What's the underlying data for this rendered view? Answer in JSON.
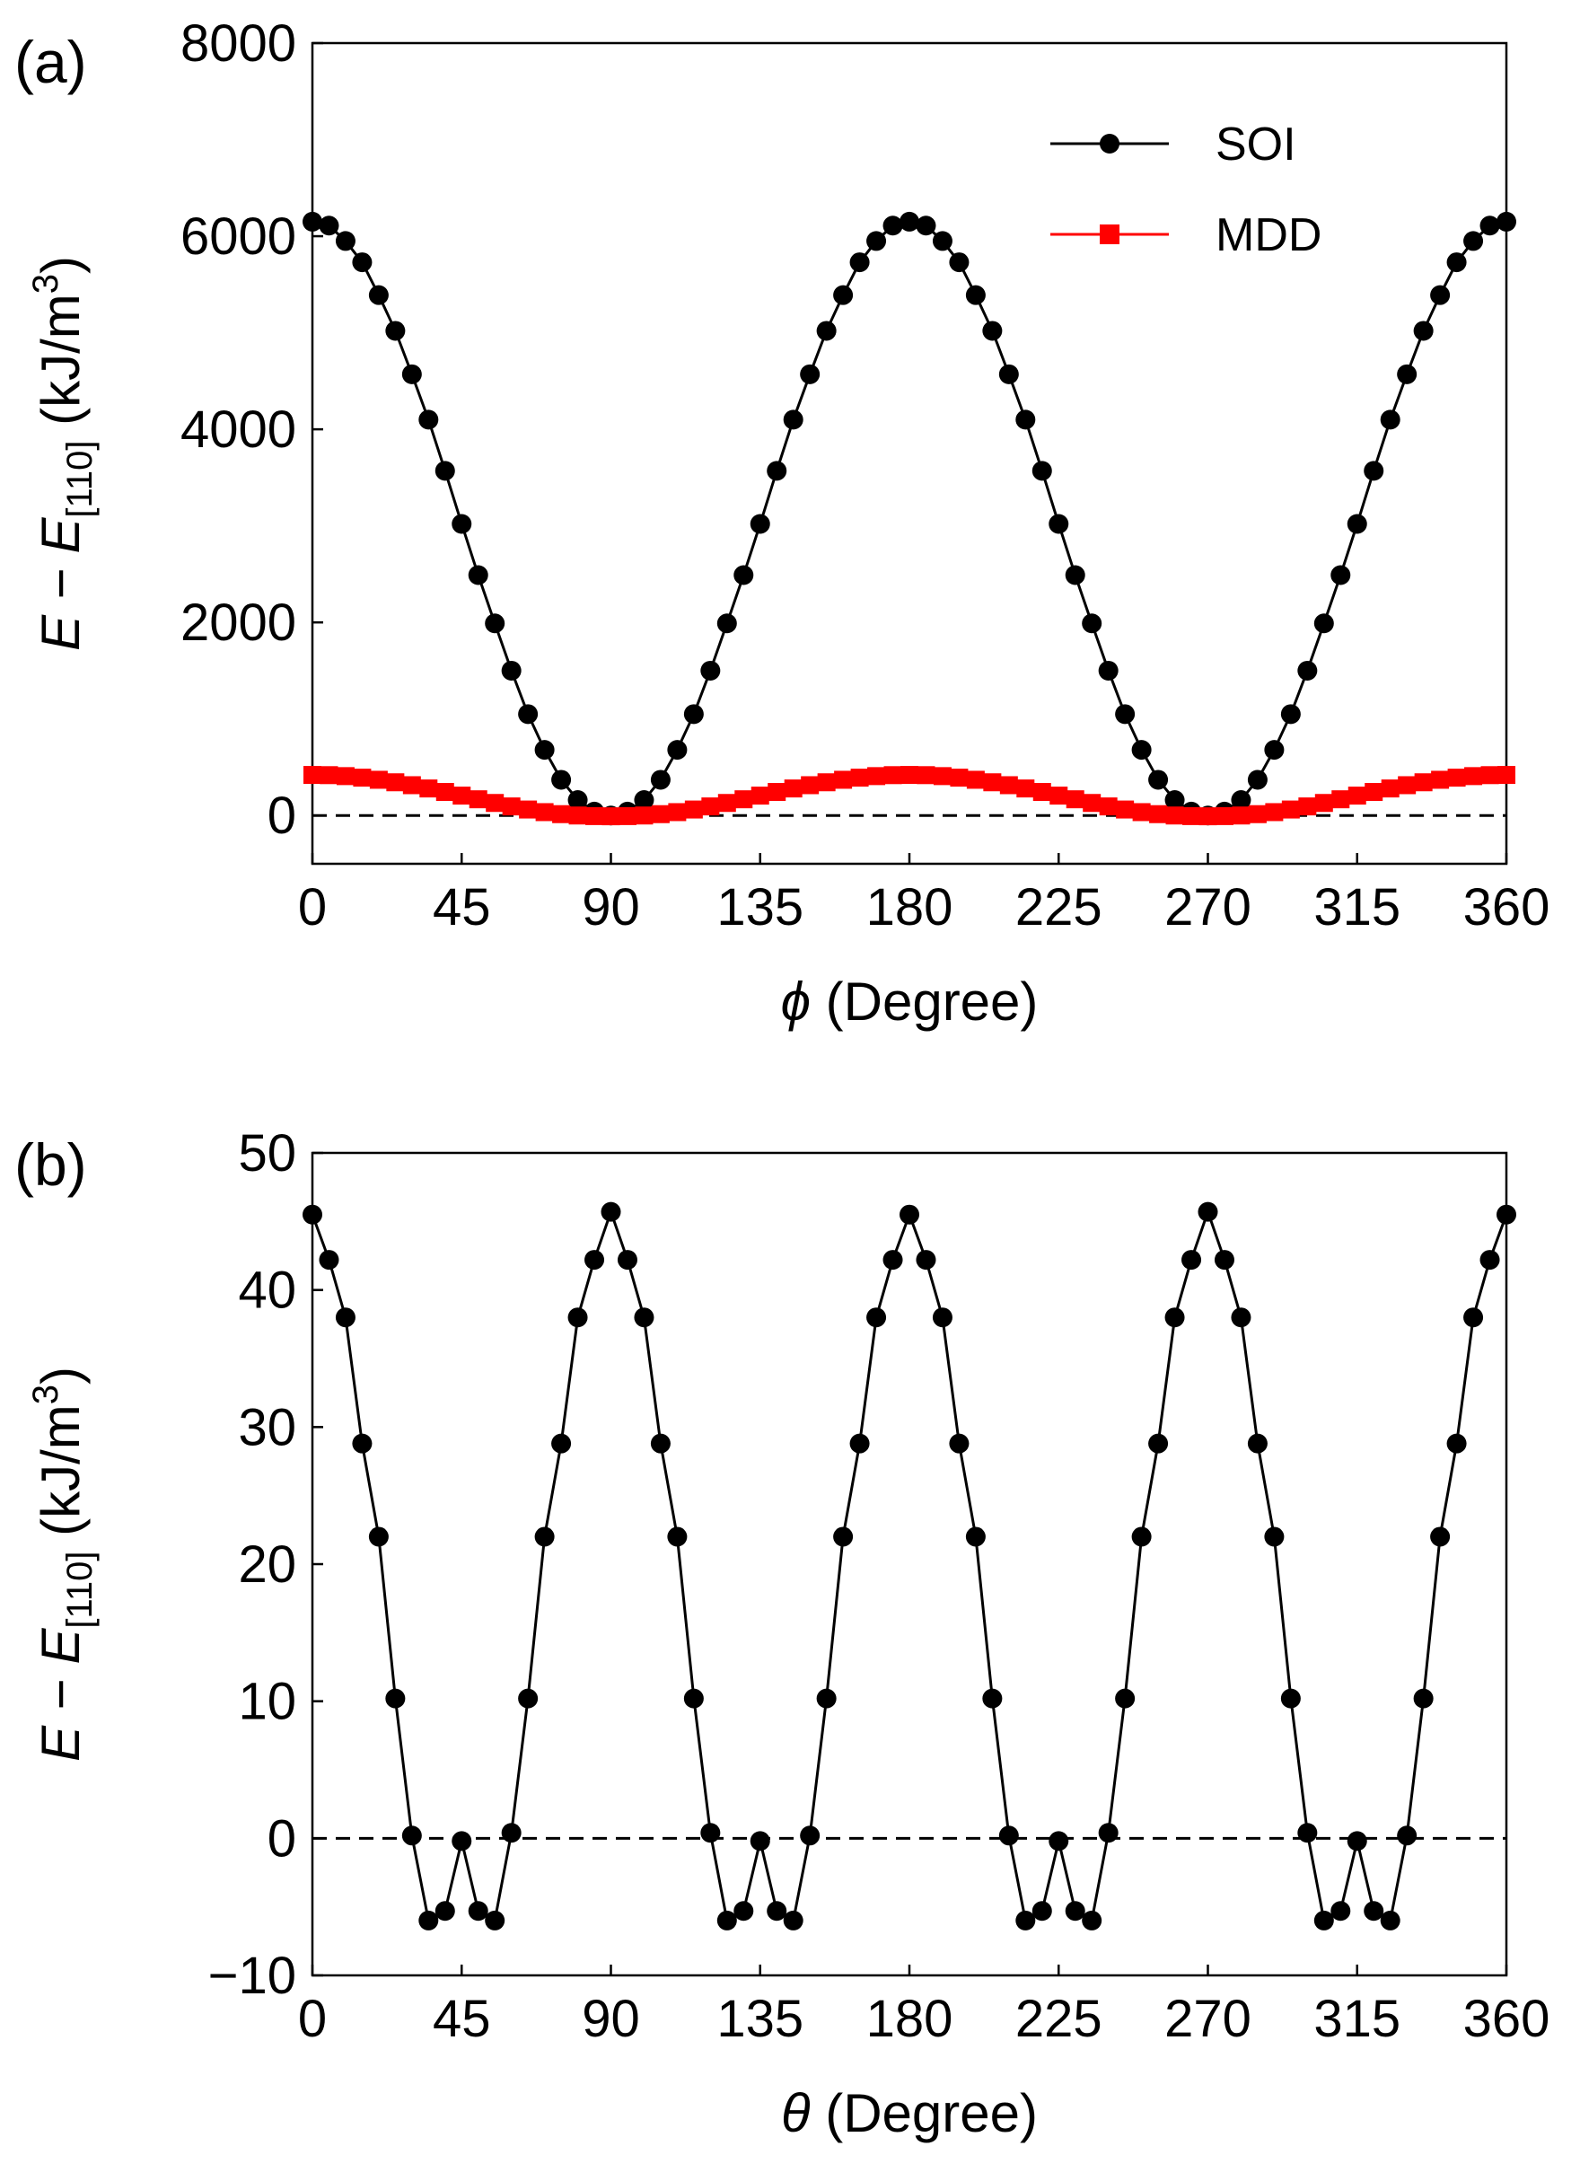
{
  "colors": {
    "soi": "#000000",
    "mdd": "#ff0000",
    "zero_line": "#000000"
  },
  "chart_data": [
    {
      "panel_label": "(a)",
      "type": "line",
      "xlabel_symbol": "ϕ",
      "xlabel_rest": " (Degree)",
      "ylabel": {
        "main": "E − E",
        "sub": "[110]",
        "units": " (kJ/m",
        "sup": "3",
        "close": ")"
      },
      "xlim": [
        0,
        360
      ],
      "ylim": [
        -500,
        8000
      ],
      "x_ticks": [
        0,
        45,
        90,
        135,
        180,
        225,
        270,
        315,
        360
      ],
      "y_ticks": [
        0,
        2000,
        4000,
        6000,
        8000
      ],
      "zero_line": 0,
      "legend_position": "top-right",
      "series": [
        {
          "name": "SOI",
          "marker": "circle",
          "color": "#000000",
          "x_step": 5,
          "values": [
            6150,
            6110,
            5950,
            5730,
            5390,
            5020,
            4570,
            4100,
            3570,
            3020,
            2490,
            1990,
            1500,
            1050,
            680,
            370,
            160,
            40,
            0,
            40,
            160,
            370,
            680,
            1050,
            1500,
            1990,
            2490,
            3020,
            3570,
            4100,
            4570,
            5020,
            5390,
            5730,
            5950,
            6110,
            6150,
            6110,
            5950,
            5730,
            5390,
            5020,
            4570,
            4100,
            3570,
            3020,
            2490,
            1990,
            1500,
            1050,
            680,
            370,
            160,
            40,
            0,
            40,
            160,
            370,
            680,
            1050,
            1500,
            1990,
            2490,
            3020,
            3570,
            4100,
            4570,
            5020,
            5390,
            5730,
            5950,
            6110,
            6150
          ]
        },
        {
          "name": "MDD",
          "marker": "square",
          "color": "#ff0000",
          "x_step": 5,
          "values": [
            420,
            418,
            408,
            392,
            370,
            344,
            314,
            280,
            244,
            206,
            168,
            130,
            94,
            62,
            35,
            14,
            0,
            -6,
            -8,
            -6,
            0,
            14,
            35,
            62,
            94,
            130,
            168,
            206,
            244,
            280,
            314,
            344,
            370,
            392,
            408,
            418,
            420,
            418,
            408,
            392,
            370,
            344,
            314,
            280,
            244,
            206,
            168,
            130,
            94,
            62,
            35,
            14,
            0,
            -6,
            -8,
            -6,
            0,
            14,
            35,
            62,
            94,
            130,
            168,
            206,
            244,
            280,
            314,
            344,
            370,
            392,
            408,
            418,
            420
          ]
        }
      ]
    },
    {
      "panel_label": "(b)",
      "type": "line",
      "xlabel_symbol": "θ",
      "xlabel_rest": " (Degree)",
      "ylabel": {
        "main": "E − E",
        "sub": "[110]",
        "units": " (kJ/m",
        "sup": "3",
        "close": ")"
      },
      "xlim": [
        0,
        360
      ],
      "ylim": [
        -10,
        50
      ],
      "x_ticks": [
        0,
        45,
        90,
        135,
        180,
        225,
        270,
        315,
        360
      ],
      "y_ticks": [
        -10,
        0,
        10,
        20,
        30,
        40,
        50
      ],
      "zero_line": 0,
      "series": [
        {
          "name": "",
          "marker": "circle",
          "color": "#000000",
          "x": [
            0,
            5,
            10,
            15,
            20,
            25,
            30,
            35,
            40,
            45,
            50,
            55,
            60,
            65,
            70,
            75,
            80,
            85,
            90,
            95,
            100,
            105,
            110,
            115,
            120,
            125,
            130,
            135,
            140,
            145,
            150,
            155,
            160,
            165,
            170,
            175,
            180,
            185,
            190,
            195,
            200,
            205,
            210,
            215,
            220,
            225,
            230,
            235,
            240,
            245,
            250,
            255,
            260,
            265,
            270,
            275,
            280,
            285,
            290,
            295,
            300,
            305,
            310,
            315,
            320,
            325,
            330,
            335,
            340,
            345,
            350,
            355,
            360
          ],
          "values": [
            45.5,
            42.2,
            38,
            28.8,
            22,
            10.2,
            0.2,
            -6,
            -5.3,
            -0.2,
            -5.3,
            -6,
            0.4,
            10.2,
            22,
            28.8,
            38,
            42.2,
            45.7,
            42.2,
            38,
            28.8,
            22,
            10.2,
            0.4,
            -6,
            -5.3,
            -0.2,
            -5.3,
            -6,
            0.2,
            10.2,
            22,
            28.8,
            38,
            42.2,
            45.5,
            42.2,
            38,
            28.8,
            22,
            10.2,
            0.2,
            -6,
            -5.3,
            -0.2,
            -5.3,
            -6,
            0.4,
            10.2,
            22,
            28.8,
            38,
            42.2,
            45.7,
            42.2,
            38,
            28.8,
            22,
            10.2,
            0.4,
            -6,
            -5.3,
            -0.2,
            -5.3,
            -6,
            0.2,
            10.2,
            22,
            28.8,
            38,
            42.2,
            45.5
          ]
        }
      ]
    }
  ]
}
